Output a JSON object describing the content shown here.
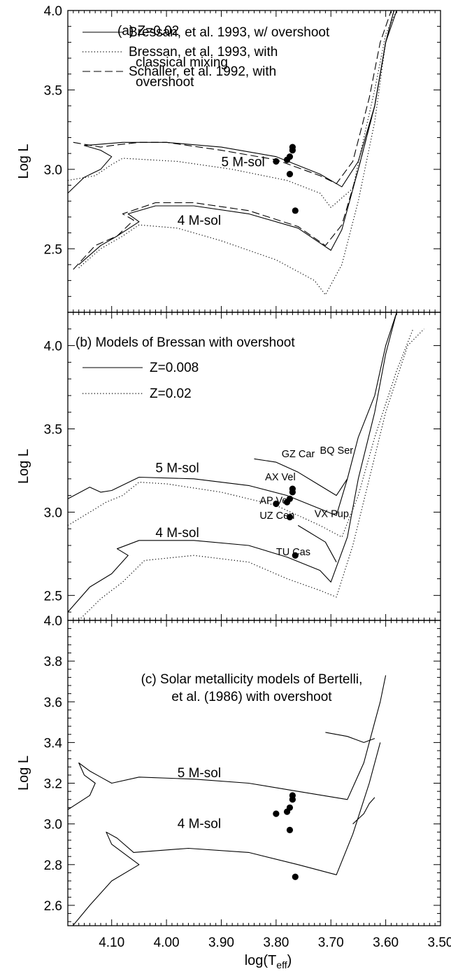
{
  "chart_data": [
    {
      "type": "line",
      "panel": "a",
      "title": "(a) Z=0.02",
      "xlabel": "",
      "ylabel": "Log L",
      "xlim": [
        4.18,
        3.5
      ],
      "ylim": [
        2.1,
        4.0
      ],
      "yticks": [
        2.5,
        3.0,
        3.5,
        4.0
      ],
      "yticklabels": [
        "2.5",
        "3.0",
        "3.5",
        "4.0"
      ],
      "legend": [
        {
          "label": "Bressan, et al. 1993, w/ overshoot",
          "label2": "",
          "style": "solid"
        },
        {
          "label": "Bressan, et al. 1993, with",
          "label2": "classical mixing",
          "style": "dotted"
        },
        {
          "label": "Schaller, et al. 1992, with",
          "label2": "overshoot",
          "style": "dashed"
        }
      ],
      "mass_labels": [
        {
          "text": "5 M-sol",
          "x": 3.9,
          "y": 3.02
        },
        {
          "text": "4 M-sol",
          "x": 3.98,
          "y": 2.65
        }
      ],
      "series": [
        {
          "style": "solid",
          "points": [
            [
              4.18,
              2.85
            ],
            [
              4.15,
              2.95
            ],
            [
              4.12,
              3.0
            ],
            [
              4.1,
              3.08
            ],
            [
              4.12,
              3.12
            ],
            [
              4.15,
              3.15
            ],
            [
              4.08,
              3.17
            ],
            [
              4.0,
              3.17
            ],
            [
              3.9,
              3.14
            ],
            [
              3.8,
              3.08
            ],
            [
              3.72,
              2.97
            ],
            [
              3.68,
              2.89
            ],
            [
              3.65,
              3.05
            ],
            [
              3.62,
              3.4
            ],
            [
              3.6,
              3.8
            ],
            [
              3.58,
              4.0
            ]
          ]
        },
        {
          "style": "solid",
          "points": [
            [
              4.16,
              2.4
            ],
            [
              4.12,
              2.52
            ],
            [
              4.09,
              2.58
            ],
            [
              4.05,
              2.67
            ],
            [
              4.07,
              2.72
            ],
            [
              4.02,
              2.77
            ],
            [
              3.95,
              2.77
            ],
            [
              3.85,
              2.72
            ],
            [
              3.76,
              2.63
            ],
            [
              3.7,
              2.49
            ],
            [
              3.68,
              2.62
            ],
            [
              3.65,
              3.0
            ],
            [
              3.62,
              3.4
            ],
            [
              3.6,
              3.8
            ],
            [
              3.585,
              4.0
            ]
          ]
        },
        {
          "style": "dotted",
          "points": [
            [
              4.18,
              2.93
            ],
            [
              4.13,
              2.96
            ],
            [
              4.1,
              3.03
            ],
            [
              4.08,
              3.07
            ],
            [
              3.98,
              3.05
            ],
            [
              3.88,
              3.0
            ],
            [
              3.78,
              2.93
            ],
            [
              3.72,
              2.85
            ],
            [
              3.7,
              2.76
            ],
            [
              3.66,
              2.88
            ],
            [
              3.64,
              3.2
            ],
            [
              3.62,
              3.5
            ],
            [
              3.6,
              3.85
            ],
            [
              3.58,
              4.0
            ]
          ]
        },
        {
          "style": "dotted",
          "points": [
            [
              4.16,
              2.38
            ],
            [
              4.12,
              2.5
            ],
            [
              4.08,
              2.58
            ],
            [
              4.05,
              2.65
            ],
            [
              3.98,
              2.63
            ],
            [
              3.9,
              2.55
            ],
            [
              3.8,
              2.43
            ],
            [
              3.73,
              2.3
            ],
            [
              3.71,
              2.21
            ],
            [
              3.68,
              2.4
            ],
            [
              3.65,
              2.8
            ],
            [
              3.62,
              3.3
            ],
            [
              3.6,
              3.8
            ],
            [
              3.585,
              4.0
            ]
          ]
        },
        {
          "style": "dashed",
          "points": [
            [
              4.17,
              3.17
            ],
            [
              4.12,
              3.14
            ],
            [
              4.1,
              3.15
            ],
            [
              4.05,
              3.17
            ],
            [
              4.0,
              3.17
            ],
            [
              3.9,
              3.12
            ],
            [
              3.8,
              3.06
            ],
            [
              3.72,
              2.96
            ],
            [
              3.69,
              2.91
            ],
            [
              3.66,
              3.05
            ],
            [
              3.63,
              3.45
            ],
            [
              3.61,
              3.8
            ],
            [
              3.59,
              4.0
            ]
          ]
        },
        {
          "style": "dashed",
          "points": [
            [
              4.17,
              2.37
            ],
            [
              4.13,
              2.52
            ],
            [
              4.09,
              2.58
            ],
            [
              4.06,
              2.68
            ],
            [
              4.08,
              2.72
            ],
            [
              4.02,
              2.79
            ],
            [
              3.95,
              2.79
            ],
            [
              3.85,
              2.74
            ],
            [
              3.76,
              2.64
            ],
            [
              3.71,
              2.52
            ],
            [
              3.68,
              2.65
            ],
            [
              3.65,
              3.0
            ],
            [
              3.62,
              3.4
            ],
            [
              3.6,
              3.8
            ],
            [
              3.585,
              4.0
            ]
          ]
        }
      ],
      "stars": [
        [
          3.8,
          3.05
        ],
        [
          3.78,
          3.06
        ],
        [
          3.775,
          3.08
        ],
        [
          3.77,
          3.12
        ],
        [
          3.77,
          3.14
        ],
        [
          3.775,
          2.97
        ],
        [
          3.765,
          2.74
        ]
      ],
      "star_labels": []
    },
    {
      "type": "line",
      "panel": "b",
      "title": "(b) Models of Bressan with overshoot",
      "xlabel": "",
      "ylabel": "Log L",
      "xlim": [
        4.18,
        3.5
      ],
      "ylim": [
        2.35,
        4.2
      ],
      "yticks": [
        2.5,
        3.0,
        3.5,
        4.0
      ],
      "yticklabels": [
        "2.5",
        "3.0",
        "3.5",
        "4.0"
      ],
      "legend": [
        {
          "label": "Z=0.008",
          "label2": "",
          "style": "solid"
        },
        {
          "label": "Z=0.02",
          "label2": "",
          "style": "dotted"
        }
      ],
      "mass_labels": [
        {
          "text": "5 M-sol",
          "x": 4.02,
          "y": 3.24
        },
        {
          "text": "4 M-sol",
          "x": 4.02,
          "y": 2.85
        }
      ],
      "series": [
        {
          "style": "solid",
          "points": [
            [
              4.18,
              3.08
            ],
            [
              4.14,
              3.15
            ],
            [
              4.12,
              3.12
            ],
            [
              4.1,
              3.13
            ],
            [
              4.05,
              3.21
            ],
            [
              3.95,
              3.2
            ],
            [
              3.85,
              3.16
            ],
            [
              3.78,
              3.1
            ],
            [
              3.72,
              3.02
            ],
            [
              3.69,
              2.98
            ],
            [
              3.67,
              3.2
            ],
            [
              3.65,
              3.45
            ],
            [
              3.62,
              3.7
            ],
            [
              3.6,
              4.0
            ],
            [
              3.58,
              4.2
            ]
          ]
        },
        {
          "style": "solid",
          "points": [
            [
              3.84,
              3.32
            ],
            [
              3.8,
              3.3
            ],
            [
              3.76,
              3.24
            ],
            [
              3.72,
              3.16
            ],
            [
              3.69,
              3.1
            ],
            [
              3.67,
              3.2
            ]
          ]
        },
        {
          "style": "solid",
          "points": [
            [
              4.18,
              2.4
            ],
            [
              4.14,
              2.55
            ],
            [
              4.1,
              2.63
            ],
            [
              4.07,
              2.74
            ],
            [
              4.09,
              2.78
            ],
            [
              4.05,
              2.83
            ],
            [
              3.95,
              2.83
            ],
            [
              3.85,
              2.8
            ],
            [
              3.78,
              2.73
            ],
            [
              3.72,
              2.65
            ],
            [
              3.7,
              2.58
            ],
            [
              3.67,
              2.85
            ],
            [
              3.65,
              3.2
            ],
            [
              3.62,
              3.6
            ],
            [
              3.6,
              3.95
            ],
            [
              3.58,
              4.2
            ]
          ]
        },
        {
          "style": "solid",
          "points": [
            [
              3.76,
              2.92
            ],
            [
              3.74,
              2.88
            ],
            [
              3.71,
              2.82
            ],
            [
              3.69,
              2.7
            ]
          ]
        },
        {
          "style": "dotted",
          "points": [
            [
              4.18,
              2.92
            ],
            [
              4.14,
              3.0
            ],
            [
              4.11,
              3.06
            ],
            [
              4.08,
              3.1
            ],
            [
              4.05,
              3.18
            ],
            [
              4.0,
              3.17
            ],
            [
              3.9,
              3.12
            ],
            [
              3.8,
              3.04
            ],
            [
              3.72,
              2.92
            ],
            [
              3.68,
              2.85
            ],
            [
              3.65,
              3.1
            ],
            [
              3.62,
              3.45
            ],
            [
              3.58,
              3.85
            ],
            [
              3.55,
              4.1
            ]
          ]
        },
        {
          "style": "dotted",
          "points": [
            [
              4.16,
              2.35
            ],
            [
              4.12,
              2.48
            ],
            [
              4.08,
              2.58
            ],
            [
              4.04,
              2.71
            ],
            [
              3.95,
              2.74
            ],
            [
              3.85,
              2.7
            ],
            [
              3.78,
              2.6
            ],
            [
              3.72,
              2.53
            ],
            [
              3.69,
              2.49
            ],
            [
              3.66,
              2.8
            ],
            [
              3.63,
              3.2
            ],
            [
              3.6,
              3.6
            ],
            [
              3.56,
              4.0
            ],
            [
              3.53,
              4.1
            ]
          ]
        }
      ],
      "stars": [
        [
          3.8,
          3.05
        ],
        [
          3.78,
          3.06
        ],
        [
          3.775,
          3.08
        ],
        [
          3.77,
          3.12
        ],
        [
          3.77,
          3.14
        ],
        [
          3.775,
          2.97
        ],
        [
          3.765,
          2.74
        ]
      ],
      "star_labels": [
        {
          "text": "GZ Car",
          "x": 3.79,
          "y": 3.33
        },
        {
          "text": "BQ Ser",
          "x": 3.72,
          "y": 3.35
        },
        {
          "text": "AX Vel",
          "x": 3.82,
          "y": 3.19
        },
        {
          "text": "AP Vel",
          "x": 3.83,
          "y": 3.05
        },
        {
          "text": "UZ Cen",
          "x": 3.83,
          "y": 2.96
        },
        {
          "text": "VX Pup",
          "x": 3.73,
          "y": 2.97
        },
        {
          "text": "TU Cas",
          "x": 3.8,
          "y": 2.74
        }
      ]
    },
    {
      "type": "line",
      "panel": "c",
      "title": "(c) Solar metallicity models of Bertelli,",
      "subtitle": "et al. (1986) with overshoot",
      "xlabel": "log(T",
      "xlabel_sub": "eff",
      "xlabel_end": ")",
      "ylabel": "Log L",
      "xlim": [
        4.18,
        3.5
      ],
      "ylim": [
        2.5,
        4.0
      ],
      "yticks": [
        2.6,
        2.8,
        3.0,
        3.2,
        3.4,
        3.6,
        3.8,
        4.0
      ],
      "yticklabels": [
        "2.6",
        "2.8",
        "3.0",
        "3.2",
        "3.4",
        "3.6",
        "3.8",
        "4.0"
      ],
      "xticks": [
        4.1,
        4.0,
        3.9,
        3.8,
        3.7,
        3.6,
        3.5
      ],
      "xticklabels": [
        "4.10",
        "4.00",
        "3.90",
        "3.80",
        "3.70",
        "3.60",
        "3.50"
      ],
      "legend": [],
      "mass_labels": [
        {
          "text": "5 M-sol",
          "x": 3.98,
          "y": 3.23
        },
        {
          "text": "4 M-sol",
          "x": 3.98,
          "y": 2.98
        }
      ],
      "series": [
        {
          "style": "solid",
          "points": [
            [
              4.18,
              3.07
            ],
            [
              4.14,
              3.14
            ],
            [
              4.13,
              3.2
            ],
            [
              4.15,
              3.24
            ],
            [
              4.16,
              3.3
            ],
            [
              4.14,
              3.26
            ],
            [
              4.12,
              3.23
            ],
            [
              4.1,
              3.2
            ],
            [
              4.05,
              3.23
            ],
            [
              3.95,
              3.22
            ],
            [
              3.85,
              3.2
            ],
            [
              3.76,
              3.16
            ],
            [
              3.67,
              3.12
            ],
            [
              3.64,
              3.3
            ],
            [
              3.62,
              3.5
            ],
            [
              3.61,
              3.6
            ],
            [
              3.6,
              3.73
            ]
          ]
        },
        {
          "style": "solid",
          "points": [
            [
              3.71,
              3.45
            ],
            [
              3.67,
              3.43
            ],
            [
              3.64,
              3.4
            ],
            [
              3.62,
              3.42
            ]
          ]
        },
        {
          "style": "solid",
          "points": [
            [
              4.18,
              2.47
            ],
            [
              4.14,
              2.6
            ],
            [
              4.1,
              2.72
            ],
            [
              4.05,
              2.8
            ],
            [
              4.07,
              2.84
            ],
            [
              4.1,
              2.9
            ],
            [
              4.11,
              2.96
            ],
            [
              4.09,
              2.93
            ],
            [
              4.06,
              2.86
            ],
            [
              3.96,
              2.88
            ],
            [
              3.85,
              2.86
            ],
            [
              3.76,
              2.8
            ],
            [
              3.69,
              2.75
            ],
            [
              3.66,
              2.95
            ],
            [
              3.63,
              3.2
            ],
            [
              3.61,
              3.4
            ]
          ]
        },
        {
          "style": "solid",
          "points": [
            [
              3.66,
              3.0
            ],
            [
              3.64,
              3.05
            ],
            [
              3.63,
              3.1
            ],
            [
              3.62,
              3.13
            ]
          ]
        }
      ],
      "stars": [
        [
          3.8,
          3.05
        ],
        [
          3.78,
          3.06
        ],
        [
          3.775,
          3.08
        ],
        [
          3.77,
          3.12
        ],
        [
          3.77,
          3.14
        ],
        [
          3.775,
          2.97
        ],
        [
          3.765,
          2.74
        ]
      ],
      "star_labels": []
    }
  ]
}
